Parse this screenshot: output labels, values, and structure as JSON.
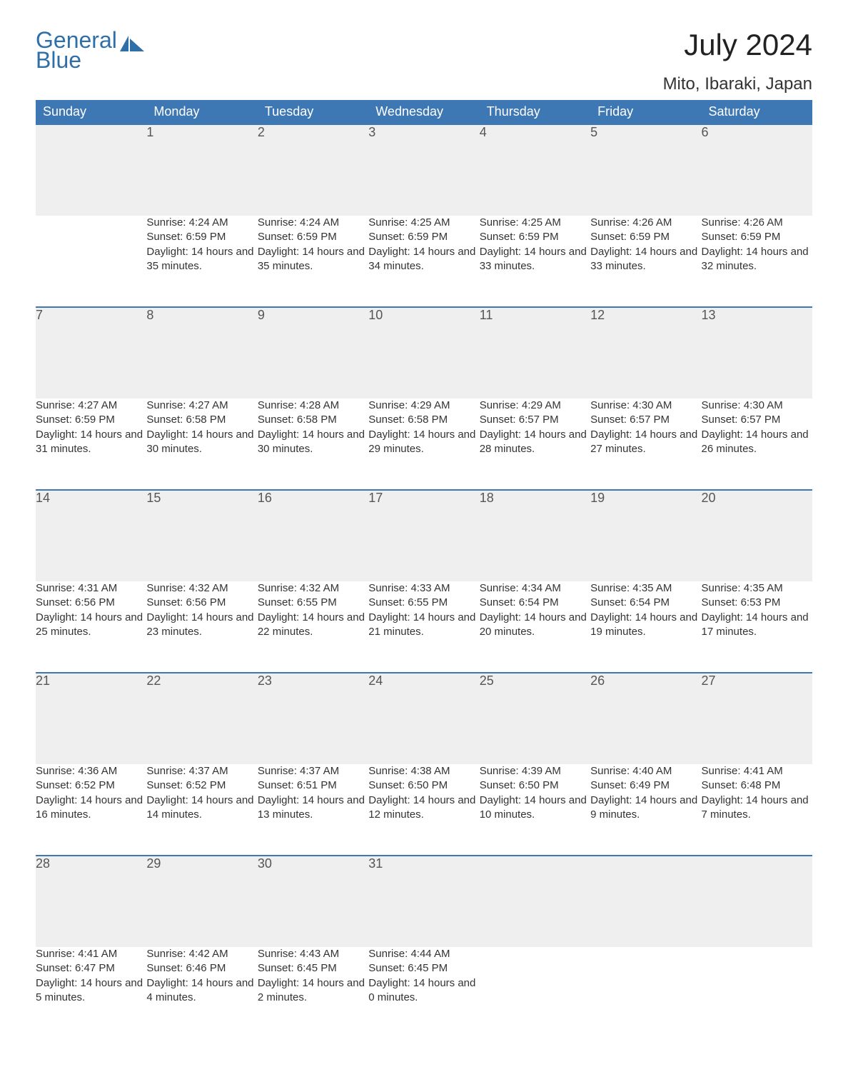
{
  "brand": {
    "name_top": "General",
    "name_bottom": "Blue",
    "color": "#2f6fa8"
  },
  "title": "July 2024",
  "location": "Mito, Ibaraki, Japan",
  "colors": {
    "header_bg": "#3d78b4",
    "header_fg": "#ffffff",
    "daynum_bg": "#efefef",
    "row_border": "#3d78b4",
    "text": "#333333",
    "background": "#ffffff"
  },
  "typography": {
    "title_fontsize": 42,
    "location_fontsize": 24,
    "header_fontsize": 18,
    "daynum_fontsize": 18,
    "body_fontsize": 15
  },
  "weekdays": [
    "Sunday",
    "Monday",
    "Tuesday",
    "Wednesday",
    "Thursday",
    "Friday",
    "Saturday"
  ],
  "weeks": [
    [
      null,
      {
        "n": "1",
        "sunrise": "Sunrise: 4:24 AM",
        "sunset": "Sunset: 6:59 PM",
        "daylight": "Daylight: 14 hours and 35 minutes."
      },
      {
        "n": "2",
        "sunrise": "Sunrise: 4:24 AM",
        "sunset": "Sunset: 6:59 PM",
        "daylight": "Daylight: 14 hours and 35 minutes."
      },
      {
        "n": "3",
        "sunrise": "Sunrise: 4:25 AM",
        "sunset": "Sunset: 6:59 PM",
        "daylight": "Daylight: 14 hours and 34 minutes."
      },
      {
        "n": "4",
        "sunrise": "Sunrise: 4:25 AM",
        "sunset": "Sunset: 6:59 PM",
        "daylight": "Daylight: 14 hours and 33 minutes."
      },
      {
        "n": "5",
        "sunrise": "Sunrise: 4:26 AM",
        "sunset": "Sunset: 6:59 PM",
        "daylight": "Daylight: 14 hours and 33 minutes."
      },
      {
        "n": "6",
        "sunrise": "Sunrise: 4:26 AM",
        "sunset": "Sunset: 6:59 PM",
        "daylight": "Daylight: 14 hours and 32 minutes."
      }
    ],
    [
      {
        "n": "7",
        "sunrise": "Sunrise: 4:27 AM",
        "sunset": "Sunset: 6:59 PM",
        "daylight": "Daylight: 14 hours and 31 minutes."
      },
      {
        "n": "8",
        "sunrise": "Sunrise: 4:27 AM",
        "sunset": "Sunset: 6:58 PM",
        "daylight": "Daylight: 14 hours and 30 minutes."
      },
      {
        "n": "9",
        "sunrise": "Sunrise: 4:28 AM",
        "sunset": "Sunset: 6:58 PM",
        "daylight": "Daylight: 14 hours and 30 minutes."
      },
      {
        "n": "10",
        "sunrise": "Sunrise: 4:29 AM",
        "sunset": "Sunset: 6:58 PM",
        "daylight": "Daylight: 14 hours and 29 minutes."
      },
      {
        "n": "11",
        "sunrise": "Sunrise: 4:29 AM",
        "sunset": "Sunset: 6:57 PM",
        "daylight": "Daylight: 14 hours and 28 minutes."
      },
      {
        "n": "12",
        "sunrise": "Sunrise: 4:30 AM",
        "sunset": "Sunset: 6:57 PM",
        "daylight": "Daylight: 14 hours and 27 minutes."
      },
      {
        "n": "13",
        "sunrise": "Sunrise: 4:30 AM",
        "sunset": "Sunset: 6:57 PM",
        "daylight": "Daylight: 14 hours and 26 minutes."
      }
    ],
    [
      {
        "n": "14",
        "sunrise": "Sunrise: 4:31 AM",
        "sunset": "Sunset: 6:56 PM",
        "daylight": "Daylight: 14 hours and 25 minutes."
      },
      {
        "n": "15",
        "sunrise": "Sunrise: 4:32 AM",
        "sunset": "Sunset: 6:56 PM",
        "daylight": "Daylight: 14 hours and 23 minutes."
      },
      {
        "n": "16",
        "sunrise": "Sunrise: 4:32 AM",
        "sunset": "Sunset: 6:55 PM",
        "daylight": "Daylight: 14 hours and 22 minutes."
      },
      {
        "n": "17",
        "sunrise": "Sunrise: 4:33 AM",
        "sunset": "Sunset: 6:55 PM",
        "daylight": "Daylight: 14 hours and 21 minutes."
      },
      {
        "n": "18",
        "sunrise": "Sunrise: 4:34 AM",
        "sunset": "Sunset: 6:54 PM",
        "daylight": "Daylight: 14 hours and 20 minutes."
      },
      {
        "n": "19",
        "sunrise": "Sunrise: 4:35 AM",
        "sunset": "Sunset: 6:54 PM",
        "daylight": "Daylight: 14 hours and 19 minutes."
      },
      {
        "n": "20",
        "sunrise": "Sunrise: 4:35 AM",
        "sunset": "Sunset: 6:53 PM",
        "daylight": "Daylight: 14 hours and 17 minutes."
      }
    ],
    [
      {
        "n": "21",
        "sunrise": "Sunrise: 4:36 AM",
        "sunset": "Sunset: 6:52 PM",
        "daylight": "Daylight: 14 hours and 16 minutes."
      },
      {
        "n": "22",
        "sunrise": "Sunrise: 4:37 AM",
        "sunset": "Sunset: 6:52 PM",
        "daylight": "Daylight: 14 hours and 14 minutes."
      },
      {
        "n": "23",
        "sunrise": "Sunrise: 4:37 AM",
        "sunset": "Sunset: 6:51 PM",
        "daylight": "Daylight: 14 hours and 13 minutes."
      },
      {
        "n": "24",
        "sunrise": "Sunrise: 4:38 AM",
        "sunset": "Sunset: 6:50 PM",
        "daylight": "Daylight: 14 hours and 12 minutes."
      },
      {
        "n": "25",
        "sunrise": "Sunrise: 4:39 AM",
        "sunset": "Sunset: 6:50 PM",
        "daylight": "Daylight: 14 hours and 10 minutes."
      },
      {
        "n": "26",
        "sunrise": "Sunrise: 4:40 AM",
        "sunset": "Sunset: 6:49 PM",
        "daylight": "Daylight: 14 hours and 9 minutes."
      },
      {
        "n": "27",
        "sunrise": "Sunrise: 4:41 AM",
        "sunset": "Sunset: 6:48 PM",
        "daylight": "Daylight: 14 hours and 7 minutes."
      }
    ],
    [
      {
        "n": "28",
        "sunrise": "Sunrise: 4:41 AM",
        "sunset": "Sunset: 6:47 PM",
        "daylight": "Daylight: 14 hours and 5 minutes."
      },
      {
        "n": "29",
        "sunrise": "Sunrise: 4:42 AM",
        "sunset": "Sunset: 6:46 PM",
        "daylight": "Daylight: 14 hours and 4 minutes."
      },
      {
        "n": "30",
        "sunrise": "Sunrise: 4:43 AM",
        "sunset": "Sunset: 6:45 PM",
        "daylight": "Daylight: 14 hours and 2 minutes."
      },
      {
        "n": "31",
        "sunrise": "Sunrise: 4:44 AM",
        "sunset": "Sunset: 6:45 PM",
        "daylight": "Daylight: 14 hours and 0 minutes."
      },
      null,
      null,
      null
    ]
  ]
}
